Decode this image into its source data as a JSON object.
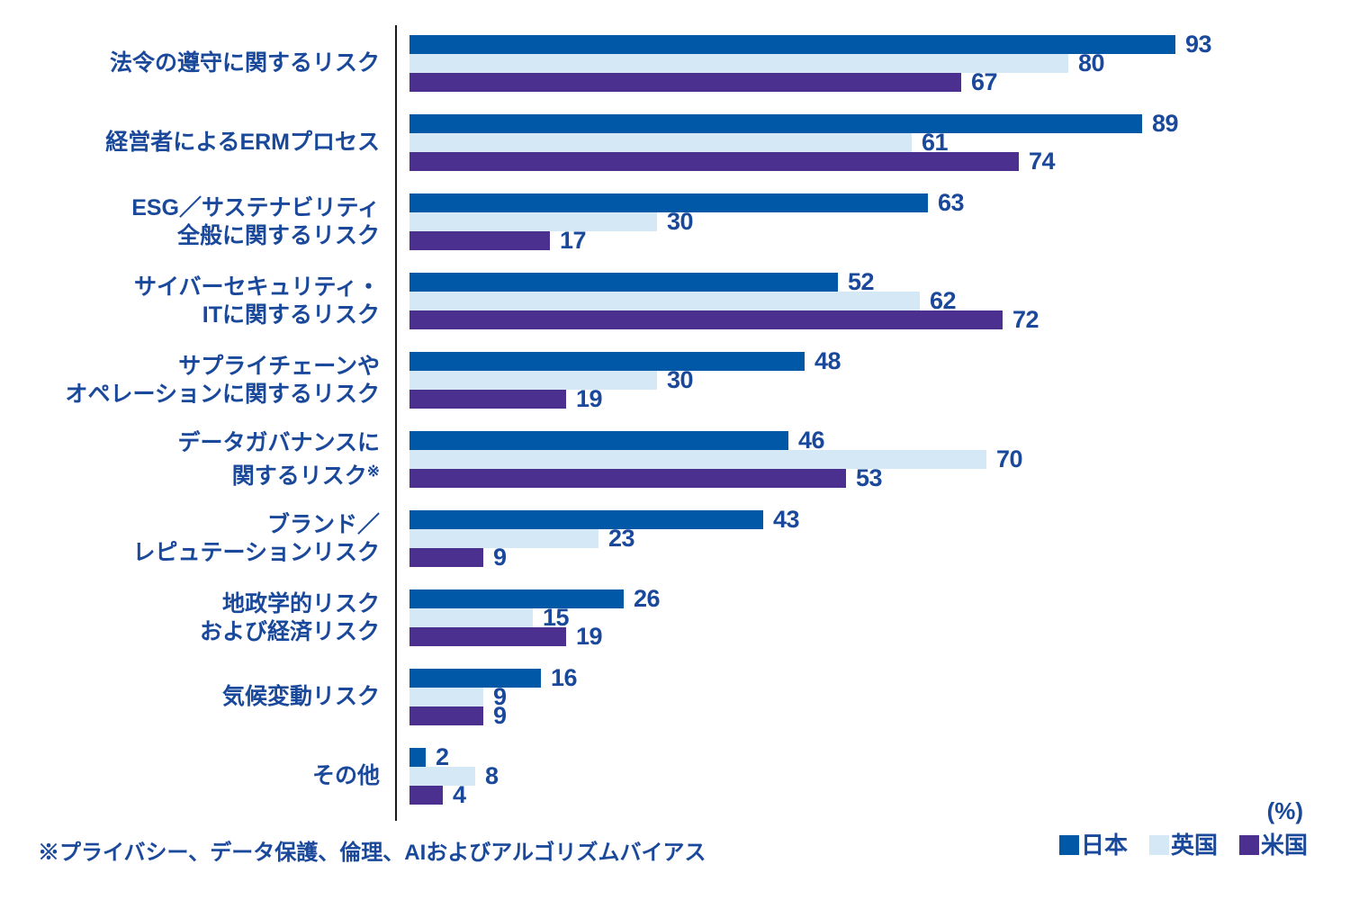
{
  "chart_data": {
    "type": "bar",
    "orientation": "horizontal",
    "title": "",
    "unit_label": "(%)",
    "xlim": [
      0,
      100
    ],
    "grid": false,
    "legend_position": "bottom-right",
    "categories": [
      {
        "lines": [
          "法令の遵守に関するリスク"
        ]
      },
      {
        "lines": [
          "経営者によるERMプロセス"
        ]
      },
      {
        "lines": [
          "ESG／サステナビリティ",
          "全般に関するリスク"
        ]
      },
      {
        "lines": [
          "サイバーセキュリティ・",
          "ITに関するリスク"
        ]
      },
      {
        "lines": [
          "サプライチェーンや",
          "オペレーションに関するリスク"
        ]
      },
      {
        "lines": [
          "データガバナンスに",
          "関するリスク※"
        ]
      },
      {
        "lines": [
          "ブランド／",
          "レピュテーションリスク"
        ]
      },
      {
        "lines": [
          "地政学的リスク",
          "および経済リスク"
        ]
      },
      {
        "lines": [
          "気候変動リスク"
        ]
      },
      {
        "lines": [
          "その他"
        ]
      }
    ],
    "series": [
      {
        "name": "日本",
        "color": "#0058A7",
        "values": [
          93,
          89,
          63,
          52,
          48,
          46,
          43,
          26,
          16,
          2
        ]
      },
      {
        "name": "英国",
        "color": "#D5E8F6",
        "values": [
          80,
          61,
          30,
          62,
          30,
          70,
          23,
          15,
          9,
          8
        ]
      },
      {
        "name": "米国",
        "color": "#4C3090",
        "values": [
          67,
          74,
          17,
          72,
          19,
          53,
          9,
          19,
          9,
          4
        ]
      }
    ]
  },
  "footnote": "※プライバシー、データ保護、倫理、AIおよびアルゴリズムバイアス",
  "colors": {
    "text": "#1A489A",
    "axis": "#1A1A1A",
    "background": "#FFFFFF"
  }
}
